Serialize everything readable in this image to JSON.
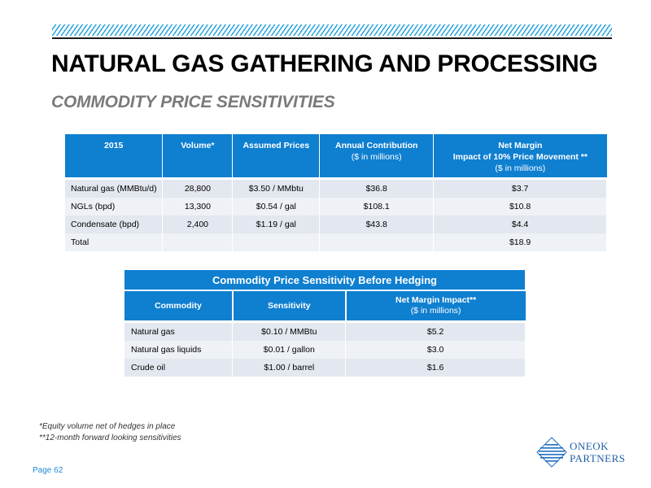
{
  "header": {
    "title": "NATURAL GAS GATHERING AND PROCESSING",
    "subtitle": "COMMODITY PRICE SENSITIVITIES"
  },
  "table1": {
    "headers": [
      {
        "main": "2015",
        "sub": ""
      },
      {
        "main": "Volume*",
        "sub": ""
      },
      {
        "main": "Assumed Prices",
        "sub": ""
      },
      {
        "main": "Annual Contribution",
        "sub": "($ in millions)"
      },
      {
        "main": "Net Margin",
        "main2": "Impact of 10% Price Movement **",
        "sub": "($ in millions)"
      }
    ],
    "rows": [
      [
        "Natural gas (MMBtu/d)",
        "28,800",
        "$3.50 / MMbtu",
        "$36.8",
        "$3.7"
      ],
      [
        "NGLs (bpd)",
        "13,300",
        "$0.54 / gal",
        "$108.1",
        "$10.8"
      ],
      [
        "Condensate (bpd)",
        "2,400",
        "$1.19 / gal",
        "$43.8",
        "$4.4"
      ],
      [
        "Total",
        "",
        "",
        "",
        "$18.9"
      ]
    ]
  },
  "table2": {
    "caption": "Commodity Price Sensitivity Before Hedging",
    "headers": [
      {
        "main": "Commodity",
        "sub": ""
      },
      {
        "main": "Sensitivity",
        "sub": ""
      },
      {
        "main": "Net Margin Impact**",
        "sub": "($ in millions)"
      }
    ],
    "rows": [
      [
        "Natural gas",
        "$0.10 / MMBtu",
        "$5.2"
      ],
      [
        "Natural gas liquids",
        "$0.01 / gallon",
        "$3.0"
      ],
      [
        "Crude oil",
        "$1.00 / barrel",
        "$1.6"
      ]
    ]
  },
  "footnotes": [
    "*Equity volume net of hedges in place",
    "**12-month forward looking sensitivities"
  ],
  "footer": {
    "page": "Page 62",
    "logo_line1": "ONEOK",
    "logo_line2": "PARTNERS",
    "logo_icon": "oneok-diamond-logo-icon"
  },
  "colors": {
    "accent": "#0f7fd0",
    "row_dark": "#e3e7ef",
    "row_light": "#eef1f6",
    "subtitle": "#7a7a7a"
  }
}
